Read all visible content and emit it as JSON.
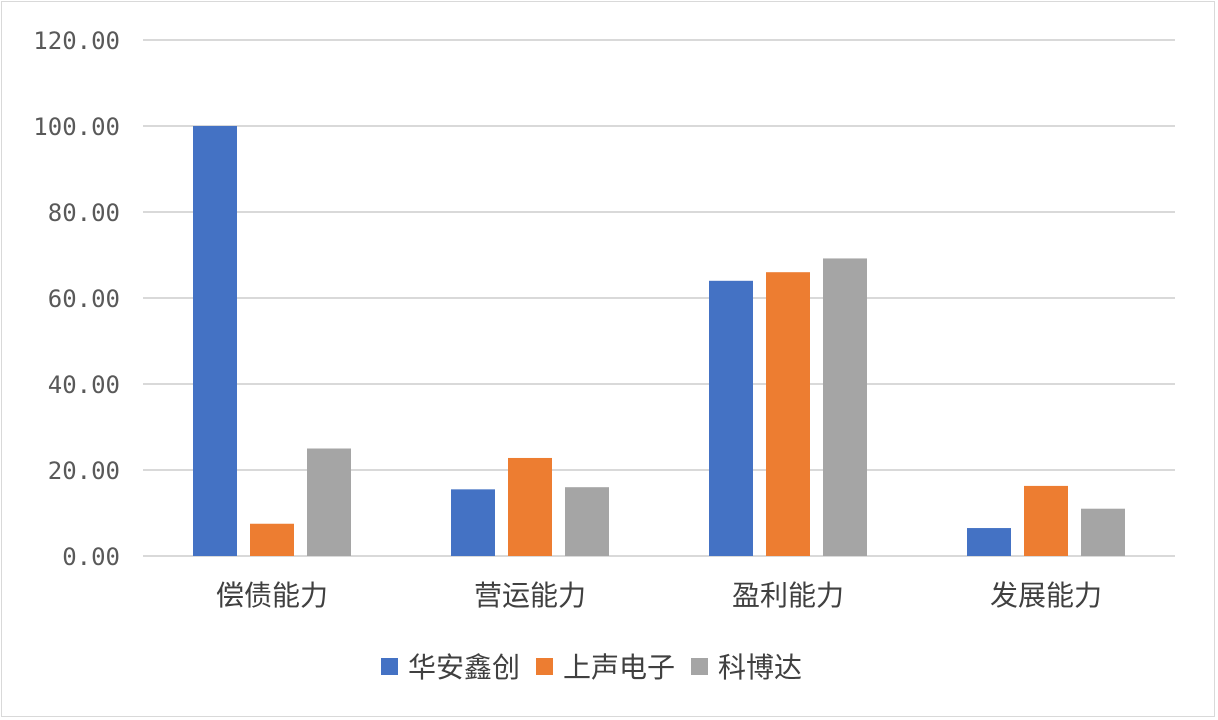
{
  "chart_data": {
    "type": "bar",
    "categories": [
      "偿债能力",
      "营运能力",
      "盈利能力",
      "发展能力"
    ],
    "series": [
      {
        "name": "华安鑫创",
        "color": "#4472c4",
        "values": [
          100.0,
          15.5,
          64.0,
          6.5
        ]
      },
      {
        "name": "上声电子",
        "color": "#ed7d31",
        "values": [
          7.5,
          22.8,
          66.0,
          16.3
        ]
      },
      {
        "name": "科博达",
        "color": "#a5a5a5",
        "values": [
          25.0,
          16.0,
          69.2,
          11.0
        ]
      }
    ],
    "yticks": [
      "0.00",
      "20.00",
      "40.00",
      "60.00",
      "80.00",
      "100.00",
      "120.00"
    ],
    "ylim": [
      0,
      120
    ],
    "grid": true,
    "legend_position": "bottom"
  }
}
